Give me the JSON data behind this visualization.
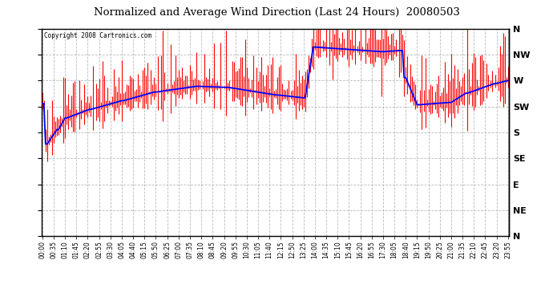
{
  "title": "Normalized and Average Wind Direction (Last 24 Hours)  20080503",
  "copyright": "Copyright 2008 Cartronics.com",
  "background_color": "#ffffff",
  "plot_bg_color": "#ffffff",
  "grid_color": "#aaaaaa",
  "bar_color": "#ff0000",
  "line_color": "#0000ff",
  "ytick_labels": [
    "N",
    "NW",
    "W",
    "SW",
    "S",
    "SE",
    "E",
    "NE",
    "N"
  ],
  "ytick_values": [
    360,
    315,
    270,
    225,
    180,
    135,
    90,
    45,
    0
  ],
  "ylim": [
    0,
    360
  ],
  "n_points": 288,
  "time_labels": [
    "00:00",
    "00:35",
    "01:10",
    "01:45",
    "02:20",
    "02:55",
    "03:30",
    "04:05",
    "04:40",
    "05:15",
    "05:50",
    "06:25",
    "07:00",
    "07:35",
    "08:10",
    "08:45",
    "09:20",
    "09:55",
    "10:30",
    "11:05",
    "11:40",
    "12:15",
    "12:50",
    "13:25",
    "14:00",
    "14:35",
    "15:10",
    "15:45",
    "16:20",
    "16:55",
    "17:30",
    "18:05",
    "18:40",
    "19:15",
    "19:50",
    "20:25",
    "21:00",
    "21:35",
    "22:10",
    "22:45",
    "23:20",
    "23:55"
  ]
}
